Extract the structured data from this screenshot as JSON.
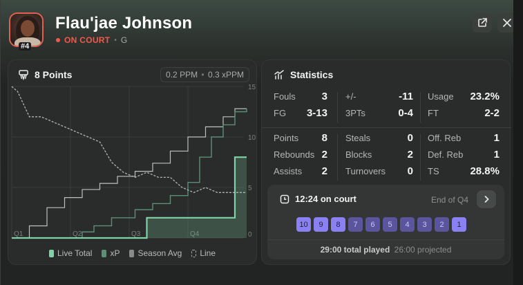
{
  "player": {
    "name": "Flau'jae Johnson",
    "jersey": "#4",
    "status": "ON COURT",
    "position": "G"
  },
  "colors": {
    "live_total": "#7fd3a6",
    "xp": "#5b8f78",
    "season_avg": "#bfbfbf",
    "line": "#9a9a9a",
    "on_court": "#f05a4a",
    "minute_active": "#8a80f2",
    "minute_inactive": "#5a559c"
  },
  "icons": {
    "avatar": "player-photo",
    "share": "external-link-icon",
    "close": "close-icon",
    "points": "basketball-hoop-icon",
    "stats": "bar-chart-icon",
    "clock": "clock-icon",
    "chevron": "chevron-right-icon"
  },
  "points_panel": {
    "title": "8 Points",
    "ppm": "0.2 PPM",
    "xppm": "0.3 xPPM"
  },
  "chart_data": {
    "type": "line",
    "x_ticks": [
      "Q1",
      "Q2",
      "Q3",
      "Q4"
    ],
    "y_ticks": [
      "0",
      "5",
      "10",
      "15"
    ],
    "ylim": [
      0,
      15
    ],
    "xlim": [
      0,
      40
    ],
    "grid": true,
    "legend_position": "bottom",
    "series": [
      {
        "name": "Live Total",
        "style": "step",
        "x": [
          0,
          23,
          23,
          38,
          38,
          40
        ],
        "y": [
          0,
          0,
          2,
          2,
          8,
          8
        ]
      },
      {
        "name": "xP",
        "style": "step",
        "x": [
          0,
          12,
          14,
          17,
          21,
          24,
          27,
          30,
          32,
          34,
          36,
          38,
          40
        ],
        "y": [
          0,
          0.6,
          1.2,
          2.0,
          2.8,
          3.4,
          4.2,
          5.5,
          8.0,
          10.0,
          11.2,
          12.5,
          12.8
        ]
      },
      {
        "name": "Season Avg",
        "style": "step",
        "x": [
          0,
          3,
          6,
          9,
          12,
          15,
          18,
          21,
          24,
          27,
          30,
          33,
          36,
          38,
          40
        ],
        "y": [
          0,
          1.2,
          3.0,
          4.0,
          4.8,
          5.4,
          6.1,
          6.6,
          7.4,
          8.6,
          10.0,
          11.0,
          12.0,
          12.8,
          12.8
        ]
      },
      {
        "name": "Line",
        "style": "dashed",
        "x": [
          0,
          1,
          3,
          5,
          7,
          9,
          11,
          13,
          15,
          17,
          19,
          21,
          23,
          25,
          27,
          29,
          31,
          33,
          35,
          38,
          40
        ],
        "y": [
          15,
          14.5,
          12.0,
          12.0,
          11.5,
          11.0,
          10.5,
          10.0,
          9.5,
          7.5,
          6.5,
          6.0,
          6.5,
          6.0,
          6.0,
          5.0,
          4.5,
          5.0,
          4.5,
          4.5,
          4.5
        ]
      }
    ]
  },
  "legend": [
    "Live Total",
    "xP",
    "Season Avg",
    "Line"
  ],
  "stats_panel": {
    "title": "Statistics",
    "top": [
      {
        "label": "Fouls",
        "value": "3"
      },
      {
        "label": "+/-",
        "value": "-11"
      },
      {
        "label": "Usage",
        "value": "23.2%"
      },
      {
        "label": "FG",
        "value": "3-13"
      },
      {
        "label": "3PTs",
        "value": "0-4"
      },
      {
        "label": "FT",
        "value": "2-2"
      }
    ],
    "bottom": [
      {
        "label": "Points",
        "value": "8"
      },
      {
        "label": "Steals",
        "value": "0"
      },
      {
        "label": "Off. Reb",
        "value": "1"
      },
      {
        "label": "Rebounds",
        "value": "2"
      },
      {
        "label": "Blocks",
        "value": "2"
      },
      {
        "label": "Def. Reb",
        "value": "1"
      },
      {
        "label": "Assists",
        "value": "2"
      },
      {
        "label": "Turnovers",
        "value": "0"
      },
      {
        "label": "TS",
        "value": "28.8%"
      }
    ]
  },
  "on_court": {
    "time": "12:24 on court",
    "period": "End of Q4",
    "minutes": [
      "10",
      "9",
      "8",
      "7",
      "6",
      "5",
      "4",
      "3",
      "2",
      "1"
    ],
    "active_minutes": [
      0,
      1,
      2,
      9
    ],
    "total": "29:00 total played",
    "projected": "26:00 projected"
  }
}
